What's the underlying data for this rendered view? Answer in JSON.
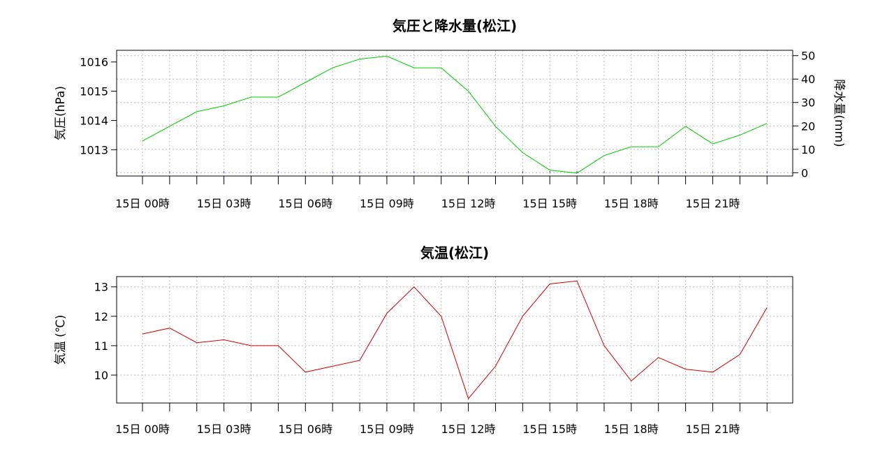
{
  "chart_data": [
    {
      "type": "line",
      "title": "気圧と降水量(松江)",
      "ylabel": "気圧(hPa)",
      "y2label": "降水量(mm)",
      "x_tick_labels": [
        "15日 00時",
        "15日 03時",
        "15日 06時",
        "15日 09時",
        "15日 12時",
        "15日 15時",
        "15日 18時",
        "15日 21時"
      ],
      "yticks": [
        1013,
        1014,
        1015,
        1016
      ],
      "ylim": [
        1012.1,
        1016.4
      ],
      "y2ticks": [
        0,
        10,
        20,
        30,
        40,
        50
      ],
      "y2lim": [
        -1.4,
        52.3
      ],
      "grid": true,
      "series": [
        {
          "color": "#00cc00",
          "axis": "left",
          "values": [
            1013.3,
            1013.8,
            1014.3,
            1014.5,
            1014.8,
            1014.8,
            1015.3,
            1015.8,
            1016.1,
            1016.2,
            1015.8,
            1015.8,
            1015.0,
            1013.8,
            1012.9,
            1012.3,
            1012.2,
            1012.8,
            1013.1,
            1013.1,
            1013.8,
            1013.2,
            1013.5,
            1013.9
          ]
        },
        {
          "color": "#0000cc",
          "axis": "right",
          "values": [
            0,
            0,
            0,
            0,
            0,
            0,
            0,
            0,
            0,
            0,
            0,
            0,
            0,
            0,
            0,
            0,
            0,
            0,
            0,
            0,
            0,
            0,
            0,
            0
          ]
        }
      ]
    },
    {
      "type": "line",
      "title": "気温(松江)",
      "ylabel": "気温 (℃)",
      "x_tick_labels": [
        "15日 00時",
        "15日 03時",
        "15日 06時",
        "15日 09時",
        "15日 12時",
        "15日 15時",
        "15日 18時",
        "15日 21時"
      ],
      "yticks": [
        10,
        11,
        12,
        13
      ],
      "ylim": [
        9.05,
        13.35
      ],
      "grid": true,
      "series": [
        {
          "color": "#cc0000",
          "values": [
            11.4,
            11.6,
            11.1,
            11.2,
            11.0,
            11.0,
            10.1,
            10.3,
            10.5,
            12.1,
            13.0,
            12.0,
            9.2,
            10.3,
            12.0,
            13.1,
            13.2,
            11.0,
            9.8,
            10.6,
            10.2,
            10.1,
            10.7,
            12.3
          ]
        }
      ]
    }
  ]
}
